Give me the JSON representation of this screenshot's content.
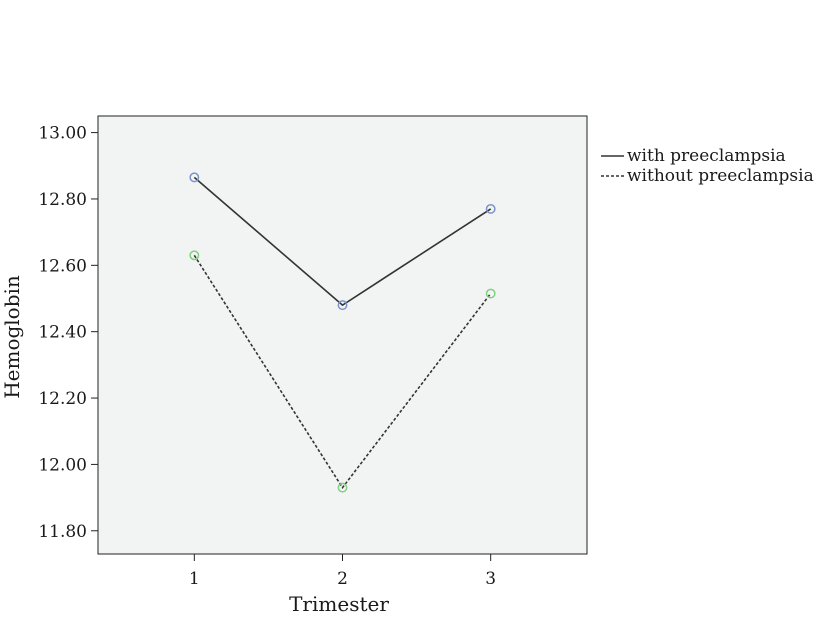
{
  "chart_data": {
    "type": "line",
    "title": "",
    "xlabel": "Trimester",
    "ylabel": "Hemoglobin",
    "x": [
      1,
      2,
      3
    ],
    "x_tick_labels": [
      "1",
      "2",
      "3"
    ],
    "xlim": [
      0.35,
      3.65
    ],
    "ylim": [
      11.73,
      13.05
    ],
    "y_ticks": [
      11.8,
      12.0,
      12.2,
      12.4,
      12.6,
      12.8,
      13.0
    ],
    "y_tick_labels": [
      "11.80",
      "12.00",
      "12.20",
      "12.40",
      "12.60",
      "12.80",
      "13.00"
    ],
    "grid": false,
    "legend_position": "right",
    "plot_background": "#f2f4f4",
    "series": [
      {
        "name": "with preeclampsia",
        "values": [
          12.865,
          12.48,
          12.77
        ],
        "line_style": "solid",
        "line_color": "#333333",
        "marker": "open-circle",
        "marker_color": "#7b93c9"
      },
      {
        "name": "without preeclampsia",
        "values": [
          12.63,
          11.93,
          12.515
        ],
        "line_style": "dashed",
        "line_color": "#333333",
        "marker": "open-circle",
        "marker_color": "#7fd07f"
      }
    ]
  }
}
